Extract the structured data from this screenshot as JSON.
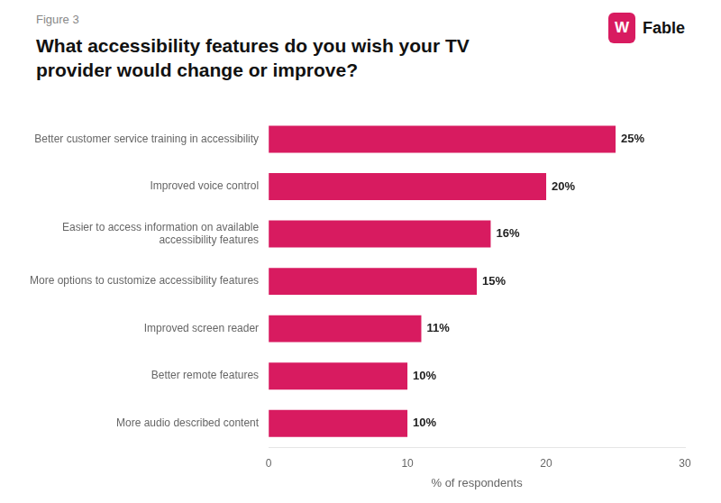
{
  "chart_data": {
    "type": "bar",
    "orientation": "horizontal",
    "title": "What accessibility features do you wish your TV\nprovider would change or improve?",
    "annotations": [
      {
        "text": "Figure 3"
      },
      {
        "text": "W",
        "color": "#D81B60"
      },
      {
        "text": "Fable"
      }
    ],
    "categories": [
      "Better customer service training in accessibility",
      "Improved voice control",
      "Easier to access information on available\naccessibility features",
      "More options to customize accessibility features",
      "Improved screen reader",
      "Better remote features",
      "More audio described content"
    ],
    "values": [
      25,
      20,
      16,
      15,
      11,
      10,
      10
    ],
    "value_labels": [
      "25%",
      "20%",
      "16%",
      "15%",
      "11%",
      "10%",
      "10%"
    ],
    "data_labels": true,
    "color": "#D81B60",
    "xlabel": "% of respondents",
    "xlim": [
      0,
      30
    ],
    "xticks": [
      0,
      10,
      20,
      30
    ],
    "grid": false
  }
}
